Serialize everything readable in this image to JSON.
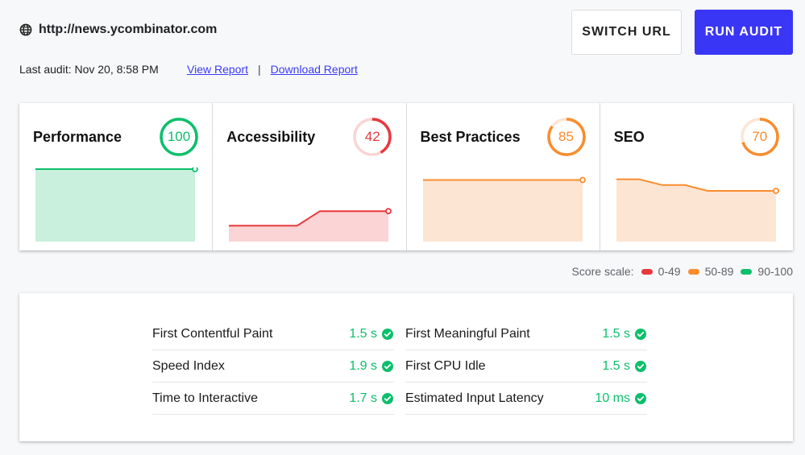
{
  "header": {
    "url": "http://news.ycombinator.com",
    "url_icon": "globe-icon",
    "last_audit": "Last audit: Nov 20, 8:58 PM",
    "view_report": "View Report",
    "separator": "|",
    "download_report": "Download Report"
  },
  "buttons": {
    "switch_url": "SWITCH URL",
    "run_audit": "RUN AUDIT"
  },
  "colors": {
    "accent": "#3a36f5",
    "pass": "#0cce6b",
    "average": "#ffa400",
    "fail": "#ff4e42"
  },
  "categories": [
    {
      "title": "Performance",
      "score": "100",
      "color": "#0cbf6b",
      "fill": "#c9f0dd"
    },
    {
      "title": "Accessibility",
      "score": "42",
      "color": "#e8383d",
      "fill": "#fbd4d5"
    },
    {
      "title": "Best Practices",
      "score": "85",
      "color": "#fa8c2d",
      "fill": "#fde5d4"
    },
    {
      "title": "SEO",
      "score": "70",
      "color": "#fa8c2d",
      "fill": "#fde5d4"
    }
  ],
  "chart_data": [
    {
      "type": "area",
      "title": "Performance",
      "x": [
        1,
        2,
        3,
        4,
        5,
        6,
        7,
        8
      ],
      "values": [
        100,
        100,
        100,
        100,
        100,
        100,
        100,
        100
      ],
      "ylim": [
        0,
        100
      ]
    },
    {
      "type": "area",
      "title": "Accessibility",
      "x": [
        1,
        2,
        3,
        4,
        5,
        6,
        7,
        8
      ],
      "values": [
        22,
        22,
        22,
        22,
        42,
        42,
        42,
        42
      ],
      "ylim": [
        0,
        100
      ]
    },
    {
      "type": "area",
      "title": "Best Practices",
      "x": [
        1,
        2,
        3,
        4,
        5,
        6,
        7,
        8
      ],
      "values": [
        85,
        85,
        85,
        85,
        85,
        85,
        85,
        85
      ],
      "ylim": [
        0,
        100
      ]
    },
    {
      "type": "area",
      "title": "SEO",
      "x": [
        1,
        2,
        3,
        4,
        5,
        6,
        7,
        8
      ],
      "values": [
        86,
        86,
        78,
        78,
        70,
        70,
        70,
        70
      ],
      "ylim": [
        0,
        100
      ]
    }
  ],
  "scale": {
    "label": "Score scale:",
    "ranges": [
      {
        "label": "0-49",
        "color": "#e8383d"
      },
      {
        "label": "50-89",
        "color": "#fa8c2d"
      },
      {
        "label": "90-100",
        "color": "#0cbf6b"
      }
    ]
  },
  "metrics": [
    {
      "label": "First Contentful Paint",
      "value": "1.5 s",
      "status_icon": "check-circle-icon"
    },
    {
      "label": "First Meaningful Paint",
      "value": "1.5 s",
      "status_icon": "check-circle-icon"
    },
    {
      "label": "Speed Index",
      "value": "1.9 s",
      "status_icon": "check-circle-icon"
    },
    {
      "label": "First CPU Idle",
      "value": "1.5 s",
      "status_icon": "check-circle-icon"
    },
    {
      "label": "Time to Interactive",
      "value": "1.7 s",
      "status_icon": "check-circle-icon"
    },
    {
      "label": "Estimated Input Latency",
      "value": "10 ms",
      "status_icon": "check-circle-icon"
    }
  ]
}
